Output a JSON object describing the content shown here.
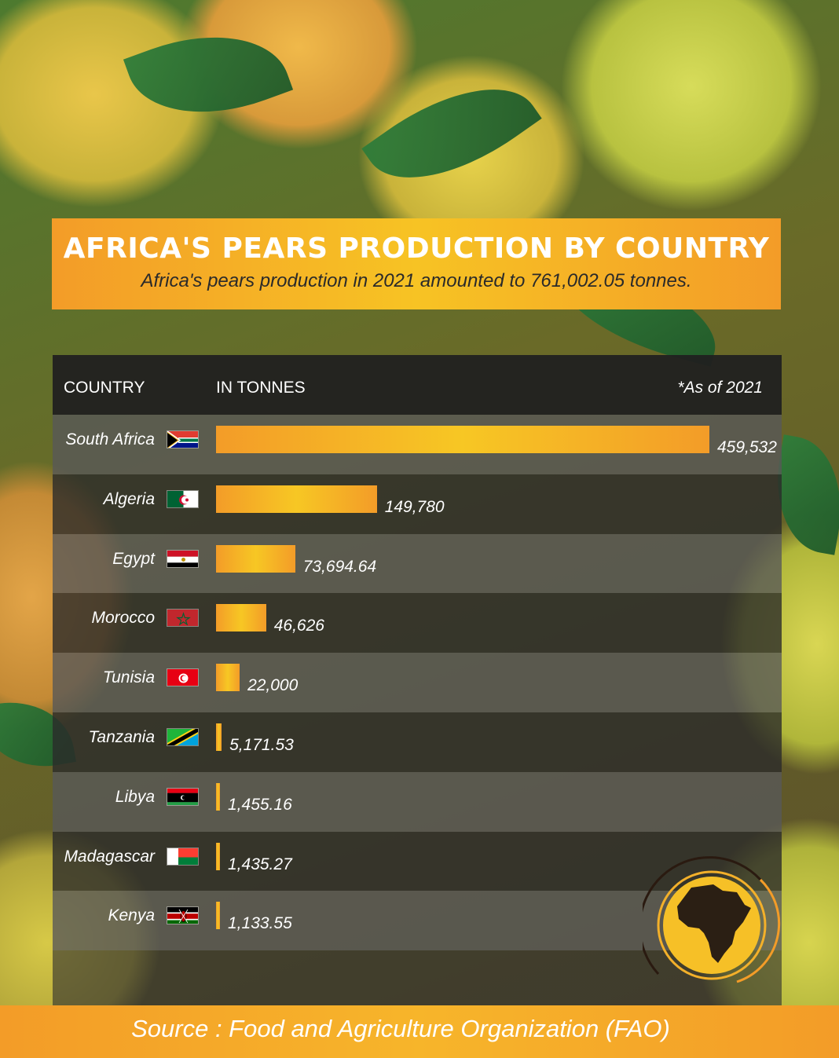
{
  "title": "AFRICA'S PEARS PRODUCTION BY COUNTRY",
  "subtitle": "Africa's pears production in 2021 amounted to 761,002.05 tonnes.",
  "table_header": {
    "country": "COUNTRY",
    "unit": "IN TONNES",
    "as_of": "*As of 2021"
  },
  "source": "Source :   Food and Agriculture Organization (FAO)",
  "colors": {
    "accent_orange": "#f39c28",
    "accent_yellow": "#f7c724"
  },
  "chart_data": {
    "type": "bar",
    "orientation": "horizontal",
    "title": "AFRICA'S PEARS PRODUCTION BY COUNTRY",
    "subtitle": "Africa's pears production in 2021 amounted to 761,002.05 tonnes.",
    "xlabel": "IN TONNES",
    "ylabel": "COUNTRY",
    "categories": [
      "South Africa",
      "Algeria",
      "Egypt",
      "Morocco",
      "Tunisia",
      "Tanzania",
      "Libya",
      "Madagascar",
      "Kenya"
    ],
    "values": [
      459532,
      149780,
      73694.64,
      46626,
      22000,
      5171.53,
      1455.16,
      1435.27,
      1133.55
    ],
    "labels": [
      "459,532",
      "149,780",
      "73,694.64",
      "46,626",
      "22,000",
      "5,171.53",
      "1,455.16",
      "1,435.27",
      "1,133.55"
    ],
    "flags": [
      "flag-south-africa-icon",
      "flag-algeria-icon",
      "flag-egypt-icon",
      "flag-morocco-icon",
      "flag-tunisia-icon",
      "flag-tanzania-icon",
      "flag-libya-icon",
      "flag-madagascar-icon",
      "flag-kenya-icon"
    ],
    "xlim": [
      0,
      459532
    ],
    "grid": false,
    "legend": "none"
  }
}
